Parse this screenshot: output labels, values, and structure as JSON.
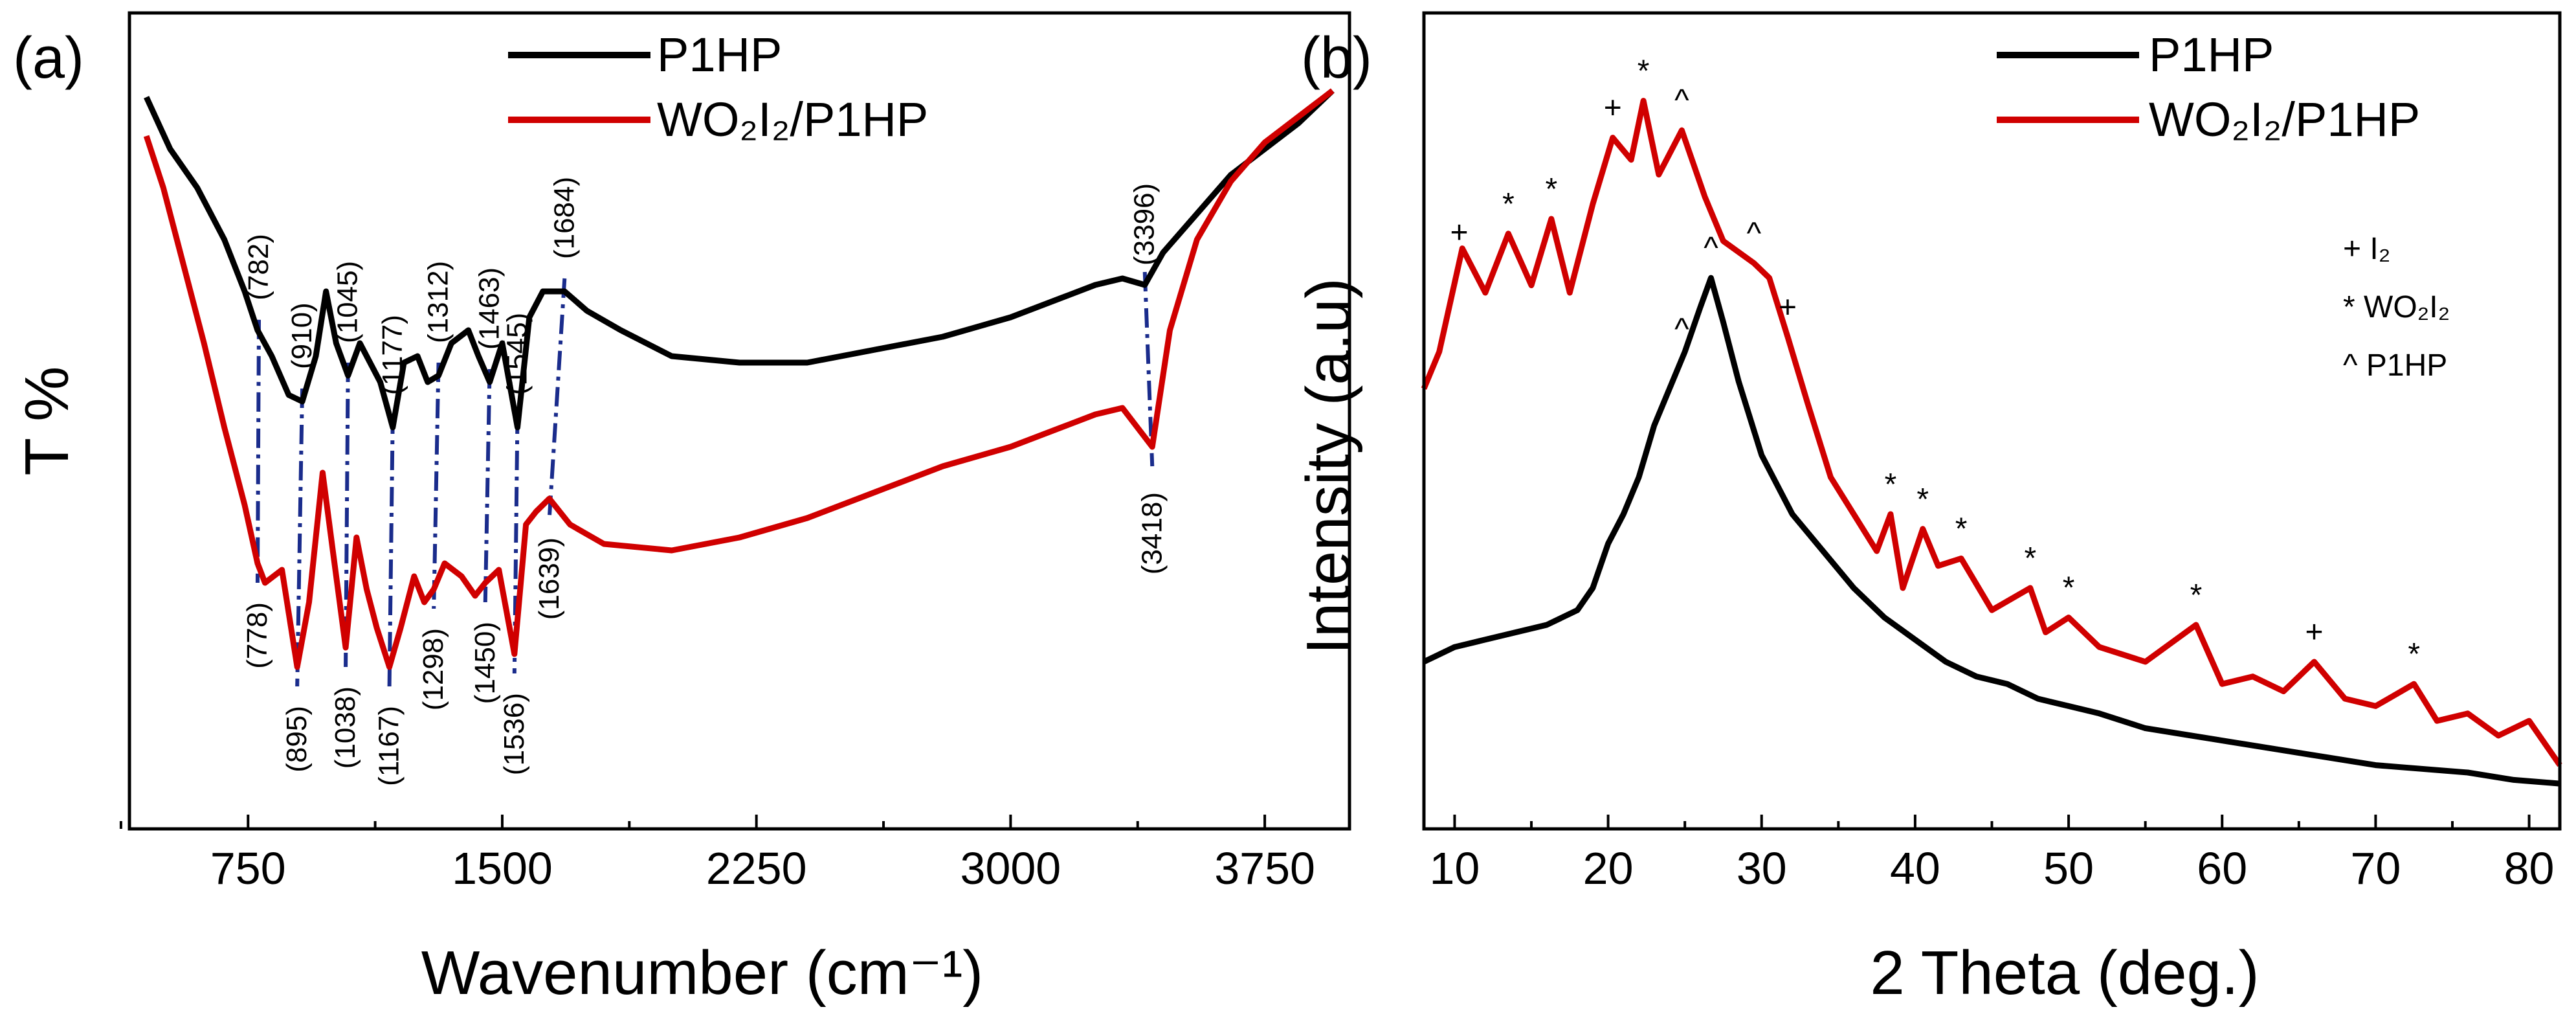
{
  "chart_data": [
    {
      "panel_label": "(a)",
      "type": "line",
      "xlabel": "Wavenumber (cm⁻¹)",
      "ylabel": "T %",
      "xlim": [
        400,
        4000
      ],
      "xticks": [
        750,
        1500,
        2250,
        3000,
        3750
      ],
      "y_ticks_shown": false,
      "legend": {
        "placement": "top-center",
        "entries": [
          "P1HP",
          "WO₂I₂/P1HP"
        ]
      },
      "series": [
        {
          "name": "P1HP",
          "color": "#000000",
          "x": [
            450,
            520,
            600,
            680,
            740,
            778,
            820,
            870,
            910,
            950,
            980,
            1010,
            1045,
            1080,
            1110,
            1140,
            1177,
            1210,
            1250,
            1280,
            1312,
            1350,
            1400,
            1430,
            1463,
            1500,
            1545,
            1580,
            1620,
            1684,
            1750,
            1850,
            2000,
            2200,
            2400,
            2600,
            2800,
            3000,
            3150,
            3250,
            3330,
            3396,
            3450,
            3550,
            3650,
            3750,
            3850,
            3950
          ],
          "y": [
            96,
            88,
            82,
            74,
            66,
            60,
            56,
            50,
            49,
            56,
            66,
            58,
            53,
            58,
            55,
            52,
            45,
            55,
            56,
            52,
            53,
            58,
            60,
            56,
            52,
            58,
            45,
            62,
            66,
            66,
            63,
            60,
            56,
            55,
            55,
            57,
            59,
            62,
            65,
            67,
            68,
            67,
            72,
            78,
            84,
            88,
            92,
            97
          ]
        },
        {
          "name": "WO₂I₂/P1HP",
          "color": "#d00000",
          "x": [
            450,
            500,
            560,
            620,
            680,
            740,
            778,
            800,
            850,
            895,
            930,
            970,
            1000,
            1038,
            1070,
            1100,
            1130,
            1167,
            1200,
            1240,
            1270,
            1298,
            1330,
            1380,
            1420,
            1450,
            1490,
            1536,
            1570,
            1600,
            1639,
            1700,
            1800,
            2000,
            2200,
            2400,
            2600,
            2800,
            3000,
            3150,
            3250,
            3330,
            3418,
            3470,
            3550,
            3650,
            3750,
            3850,
            3950
          ],
          "y": [
            90,
            82,
            70,
            58,
            45,
            33,
            24,
            21,
            23,
            8,
            18,
            38,
            26,
            11,
            28,
            20,
            14,
            8,
            14,
            22,
            18,
            20,
            24,
            22,
            19,
            21,
            23,
            10,
            30,
            32,
            34,
            30,
            27,
            26,
            28,
            31,
            35,
            39,
            42,
            45,
            47,
            48,
            42,
            60,
            74,
            83,
            89,
            93,
            97
          ]
        }
      ],
      "annotations_p1hp": [
        "(782)",
        "(910)",
        "(1045)",
        "(1177)",
        "(1312)",
        "(1463)",
        "(1545)",
        "(1684)",
        "(3396)"
      ],
      "annotations_wo2i2": [
        "(778)",
        "(895)",
        "(1038)",
        "(1167)",
        "(1298)",
        "(1450)",
        "(1536)",
        "(1639)",
        "(3418)"
      ]
    },
    {
      "panel_label": "(b)",
      "type": "line",
      "xlabel": "2 Theta (deg.)",
      "ylabel": "Intensity (a.u)",
      "xlim": [
        8,
        82
      ],
      "xticks": [
        10,
        20,
        30,
        40,
        50,
        60,
        70,
        80
      ],
      "y_ticks_shown": false,
      "legend": {
        "placement": "top-right",
        "entries": [
          "P1HP",
          "WO₂I₂/P1HP"
        ]
      },
      "key": [
        "+ I₂",
        "* WO₂I₂",
        "^ P1HP"
      ],
      "series": [
        {
          "name": "P1HP",
          "color": "#000000",
          "x": [
            8,
            10,
            12,
            14,
            16,
            18,
            19,
            20,
            21,
            22,
            23,
            24,
            25,
            26,
            26.7,
            27.5,
            28.5,
            30,
            32,
            34,
            36,
            38,
            40,
            42,
            44,
            46,
            48,
            50,
            52,
            55,
            58,
            61,
            64,
            67,
            70,
            73,
            76,
            79,
            82
          ],
          "y": [
            20,
            22,
            23,
            24,
            25,
            27,
            30,
            36,
            40,
            45,
            52,
            57,
            62,
            68,
            72,
            66,
            58,
            48,
            40,
            35,
            30,
            26,
            23,
            20,
            18,
            17,
            15,
            14,
            13,
            11,
            10,
            9,
            8,
            7,
            6,
            5.5,
            5,
            4,
            3.5
          ]
        },
        {
          "name": "WO₂I₂/P1HP",
          "color": "#d00000",
          "x": [
            8,
            9,
            10.5,
            12,
            13.5,
            15,
            16.3,
            17.5,
            19,
            20.3,
            21.5,
            22.3,
            23.3,
            24.8,
            26.3,
            27.5,
            29.5,
            30.5,
            31.7,
            33,
            34.5,
            36,
            37.5,
            38.4,
            39.2,
            40.5,
            41.5,
            43,
            45,
            47.5,
            48.5,
            50,
            52,
            55,
            58.3,
            60,
            62,
            64,
            66,
            68,
            70,
            72.5,
            74,
            76,
            78,
            80,
            82
          ],
          "y": [
            57,
            62,
            76,
            70,
            78,
            71,
            80,
            70,
            82,
            91,
            88,
            96,
            86,
            92,
            83,
            77,
            74,
            72,
            64,
            55,
            45,
            40,
            35,
            40,
            30,
            38,
            33,
            34,
            27,
            30,
            24,
            26,
            22,
            20,
            25,
            17,
            18,
            16,
            20,
            15,
            14,
            17,
            12,
            13,
            10,
            12,
            6
          ]
        }
      ],
      "markers": [
        {
          "x": 10.3,
          "s": "+"
        },
        {
          "x": 13.5,
          "s": "*"
        },
        {
          "x": 16.3,
          "s": "*"
        },
        {
          "x": 20.3,
          "s": "+"
        },
        {
          "x": 22.3,
          "s": "*"
        },
        {
          "x": 24.8,
          "s": "^"
        },
        {
          "x": 29.5,
          "s": "^"
        },
        {
          "x": 31.7,
          "s": "+"
        },
        {
          "x": 38.4,
          "s": "*"
        },
        {
          "x": 40.5,
          "s": "*"
        },
        {
          "x": 43,
          "s": "*"
        },
        {
          "x": 47.5,
          "s": "*"
        },
        {
          "x": 50,
          "s": "*"
        },
        {
          "x": 58.3,
          "s": "*"
        },
        {
          "x": 66,
          "s": "+"
        },
        {
          "x": 72.5,
          "s": "*"
        }
      ],
      "p1hp_markers": [
        {
          "x": 24.8,
          "s": "^"
        },
        {
          "x": 26.7,
          "s": "^"
        }
      ]
    }
  ]
}
